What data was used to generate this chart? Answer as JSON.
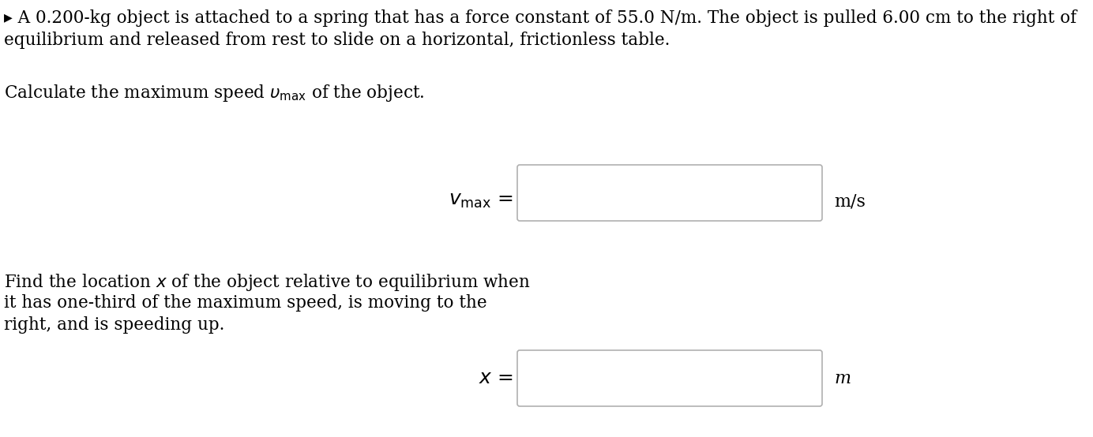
{
  "background_color": "#ffffff",
  "intro_text_line1": "▸ A 0.200-kg object is attached to a spring that has a force constant of 55.0 N/m. The object is pulled 6.00 cm to the right of",
  "intro_text_line2": "equilibrium and released from rest to slide on a horizontal, frictionless table.",
  "question1_text": "Calculate the maximum speed $\\upsilon_{\\mathrm{max}}$ of the object.",
  "question2_line1": "Find the location $x$ of the object relative to equilibrium when",
  "question2_line2": "it has one-third of the maximum speed, is moving to the",
  "question2_line3": "right, and is speeding up.",
  "unit1": "m/s",
  "unit2": "m",
  "box_facecolor": "#ffffff",
  "box_edgecolor": "#b0b0b0",
  "text_color": "#000000",
  "fontsize_body": 15.5,
  "fontsize_label": 16,
  "fontsize_unit": 16,
  "fig_width": 13.84,
  "fig_height": 5.54,
  "dpi": 100
}
